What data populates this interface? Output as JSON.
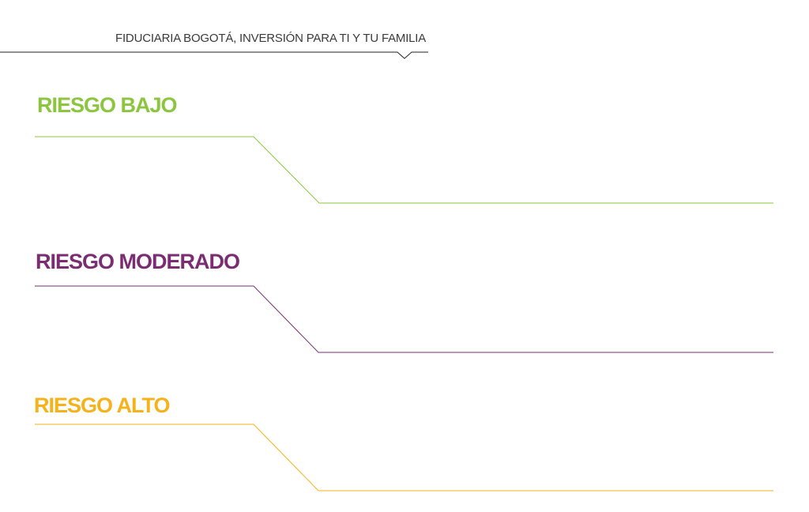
{
  "header": {
    "title": "FIDUCIARIA BOGOTÁ, INVERSIÓN PARA TI Y TU FAMILIA"
  },
  "sections": [
    {
      "title": "RIESGO BAJO",
      "color": "#8cc63f"
    },
    {
      "title": "RIESGO MODERADO",
      "color": "#7b2d73"
    },
    {
      "title": "RIESGO ALTO",
      "color": "#f5b21b"
    }
  ],
  "colors": {
    "header_text": "#3a3a3a",
    "header_rule": "#222222"
  }
}
